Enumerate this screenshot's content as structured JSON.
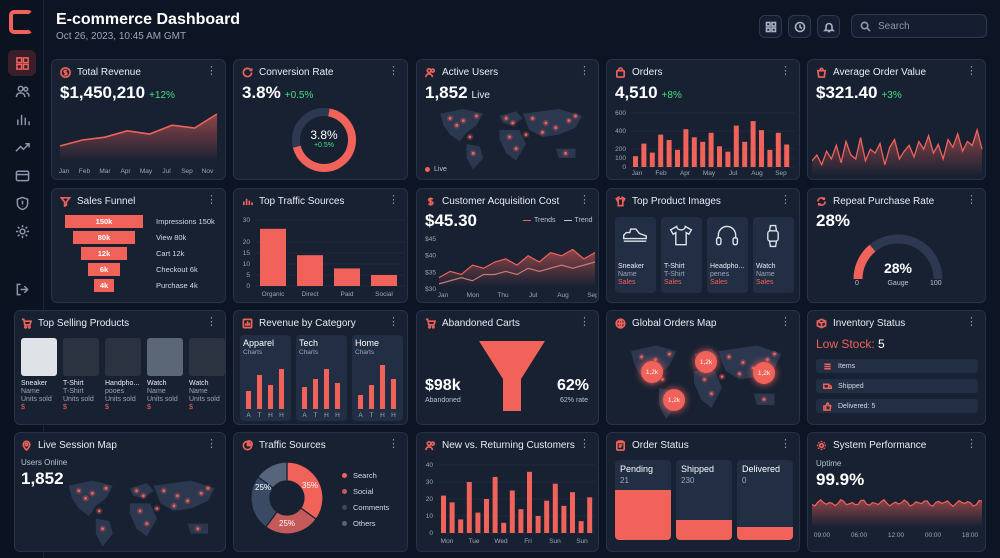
{
  "header": {
    "title": "E-commerce Dashboard",
    "date": "Oct 26, 2023, 10:45 AM GMT",
    "search_placeholder": "Search"
  },
  "sidebar": {
    "items": [
      "dashboard-icon",
      "users-icon",
      "analytics-icon",
      "trend-icon",
      "wallet-icon",
      "shield-icon",
      "settings-icon"
    ],
    "logout": "logout-icon"
  },
  "colors": {
    "accent": "#f0625a",
    "background": "#0d1524",
    "card": "#172132",
    "positive": "#4ade80"
  },
  "total_revenue": {
    "title": "Total Revenue",
    "value": "$1,450,210",
    "delta": "+12%",
    "months": [
      "Jan",
      "Feb",
      "Mar",
      "Apr",
      "May",
      "Jul",
      "Sep",
      "Nov"
    ]
  },
  "conversion": {
    "title": "Conversion Rate",
    "value": "3.8%",
    "delta": "+0.5%",
    "ring_value": "3.8%",
    "ring_delta": "+0.5%"
  },
  "active_users": {
    "title": "Active Users",
    "value": "1,852",
    "suffix": "Live",
    "legend": "Live"
  },
  "orders": {
    "title": "Orders",
    "value": "4,510",
    "delta": "+8%"
  },
  "aov": {
    "title": "Average Order Value",
    "value": "$321.40",
    "delta": "+3%"
  },
  "funnel": {
    "title": "Sales Funnel",
    "steps": [
      {
        "label": "150k",
        "side": "Impressions 150k"
      },
      {
        "label": "80k",
        "side": "View 80k"
      },
      {
        "label": "12k",
        "side": "Cart 12k"
      },
      {
        "label": "6k",
        "side": "Checkout 6k"
      },
      {
        "label": "4k",
        "side": "Purchase 4k"
      }
    ]
  },
  "traffic_top": {
    "title": "Top Traffic Sources"
  },
  "cac": {
    "title": "Customer Acquisition Cost",
    "value": "$45.30",
    "legend_a": "Trends",
    "legend_b": "Trend"
  },
  "top_images": {
    "title": "Top Product Images",
    "products": [
      {
        "name": "Sneaker",
        "sub": "Name",
        "tag": "Sales",
        "icon": "sneaker-icon"
      },
      {
        "name": "T-Shirt",
        "sub": "T-Shirt",
        "tag": "Sales",
        "icon": "tshirt-icon"
      },
      {
        "name": "Headpho...",
        "sub": "penes",
        "tag": "Sales",
        "icon": "headphones-icon"
      },
      {
        "name": "Watch",
        "sub": "Name",
        "tag": "Sales",
        "icon": "watch-icon"
      }
    ]
  },
  "repeat": {
    "title": "Repeat Purchase Rate",
    "value": "28%",
    "gauge_value": "28%",
    "gauge_label": "Gauge",
    "min": "0",
    "max": "100",
    "fraction": 0.28
  },
  "top_selling": {
    "title": "Top Selling Products",
    "products": [
      {
        "name": "Sneaker",
        "sub": "Name",
        "note": "Units sold",
        "tag": "$"
      },
      {
        "name": "T-Shirt",
        "sub": "T-Shirt",
        "note": "Units sold",
        "tag": "$"
      },
      {
        "name": "Handpho...",
        "sub": "pooes",
        "note": "Units sold",
        "tag": "$"
      },
      {
        "name": "Watch",
        "sub": "Name",
        "note": "Units sold",
        "tag": "$"
      },
      {
        "name": "Watch",
        "sub": "Name",
        "note": "Units sold",
        "tag": "$"
      }
    ]
  },
  "revenue_category": {
    "title": "Revenue by Category",
    "categories": [
      {
        "name": "Apparel",
        "sub": "Charts",
        "ticks": [
          "A",
          "T",
          "H",
          "H"
        ]
      },
      {
        "name": "Tech",
        "sub": "Charts",
        "ticks": [
          "A",
          "T",
          "H",
          "H"
        ]
      },
      {
        "name": "Home",
        "sub": "Charts",
        "ticks": [
          "A",
          "T",
          "H",
          "H"
        ]
      }
    ]
  },
  "abandoned": {
    "title": "Abandoned Carts",
    "value": "$98k",
    "value_label": "Abandoned",
    "rate": "62%",
    "rate_label": "62% rate"
  },
  "global_orders": {
    "title": "Global Orders Map",
    "markers": [
      "1,2k",
      "1,2k",
      "1,2k",
      "1,2k"
    ]
  },
  "inventory": {
    "title": "Inventory Status",
    "low_label": "Low Stock:",
    "low_value": "5",
    "rows": [
      "Items",
      "Shipped",
      "Delivered: 5"
    ]
  },
  "live_session": {
    "title": "Live Session Map",
    "label": "Users Online",
    "value": "1,852"
  },
  "traffic_sources": {
    "title": "Traffic Sources",
    "legend": [
      "Search",
      "Social",
      "Comments",
      "Others"
    ],
    "labels": [
      "35%",
      "25%",
      "25%"
    ]
  },
  "new_returning": {
    "title": "New vs. Returning Customers"
  },
  "order_status": {
    "title": "Order Status",
    "columns": [
      {
        "label": "Pending",
        "value": "21",
        "fraction": 0.62
      },
      {
        "label": "Shipped",
        "value": "230",
        "fraction": 0.25
      },
      {
        "label": "Delivered",
        "value": "0",
        "fraction": 0.16
      }
    ]
  },
  "system": {
    "title": "System Performance",
    "label": "Uptime",
    "value": "99.9%",
    "times": [
      "09:00",
      "06:00",
      "12:00",
      "00:00",
      "18:00"
    ]
  },
  "chart_data": [
    {
      "id": "total-revenue",
      "type": "area",
      "categories": [
        "Jan",
        "Feb",
        "Mar",
        "Apr",
        "May",
        "Jul",
        "Sep",
        "Nov"
      ],
      "values": [
        40,
        55,
        62,
        78,
        70,
        92,
        85,
        120
      ],
      "title": "Total Revenue"
    },
    {
      "id": "orders",
      "type": "bar",
      "y_ticks": [
        0,
        100,
        200,
        400,
        600
      ],
      "x_ticks": [
        "Jan",
        "Feb",
        "Apr",
        "May",
        "Jul",
        "Aug",
        "Sep"
      ],
      "values": [
        120,
        260,
        160,
        360,
        300,
        190,
        420,
        330,
        280,
        380,
        230,
        170,
        460,
        280,
        510,
        410,
        190,
        380,
        250
      ],
      "title": "Orders"
    },
    {
      "id": "traffic-top",
      "type": "bar",
      "categories": [
        "Organic",
        "Direct",
        "Paid",
        "Social"
      ],
      "values": [
        26,
        14,
        8,
        5
      ],
      "ylim": [
        0,
        30
      ],
      "y_ticks": [
        0,
        5,
        10,
        15,
        20,
        30
      ],
      "title": "Top Traffic Sources"
    },
    {
      "id": "cac",
      "type": "line",
      "x_ticks": [
        "Jan",
        "Mon",
        "Thu",
        "Jul",
        "Aug",
        "Sep"
      ],
      "y_ticks": [
        "$45",
        "$40",
        "$35",
        "$30"
      ],
      "ylim": [
        30,
        46
      ],
      "series": [
        {
          "name": "Trends",
          "values": [
            33,
            35,
            34,
            37,
            36,
            38,
            39,
            37,
            40,
            38,
            41,
            40,
            42,
            39,
            41
          ]
        },
        {
          "name": "Trend",
          "values": [
            31,
            32,
            33,
            32,
            34,
            34,
            35,
            34,
            36,
            35,
            36,
            37,
            36,
            37,
            38
          ]
        }
      ],
      "title": "Customer Acquisition Cost"
    },
    {
      "id": "new-returning",
      "type": "bar",
      "x_ticks": [
        "Mon",
        "Tue",
        "Wed",
        "Fri",
        "Sun",
        "Sun"
      ],
      "y_ticks": [
        0,
        10,
        20,
        30,
        40
      ],
      "ylim": [
        0,
        40
      ],
      "values": [
        22,
        18,
        8,
        30,
        12,
        20,
        33,
        6,
        25,
        14,
        36,
        10,
        19,
        29,
        16,
        24,
        7,
        21
      ],
      "title": "New vs. Returning Customers"
    },
    {
      "id": "traffic-sources",
      "type": "pie",
      "categories": [
        "Search",
        "Social",
        "Comments",
        "Others"
      ],
      "values": [
        35,
        25,
        25,
        15
      ]
    }
  ]
}
